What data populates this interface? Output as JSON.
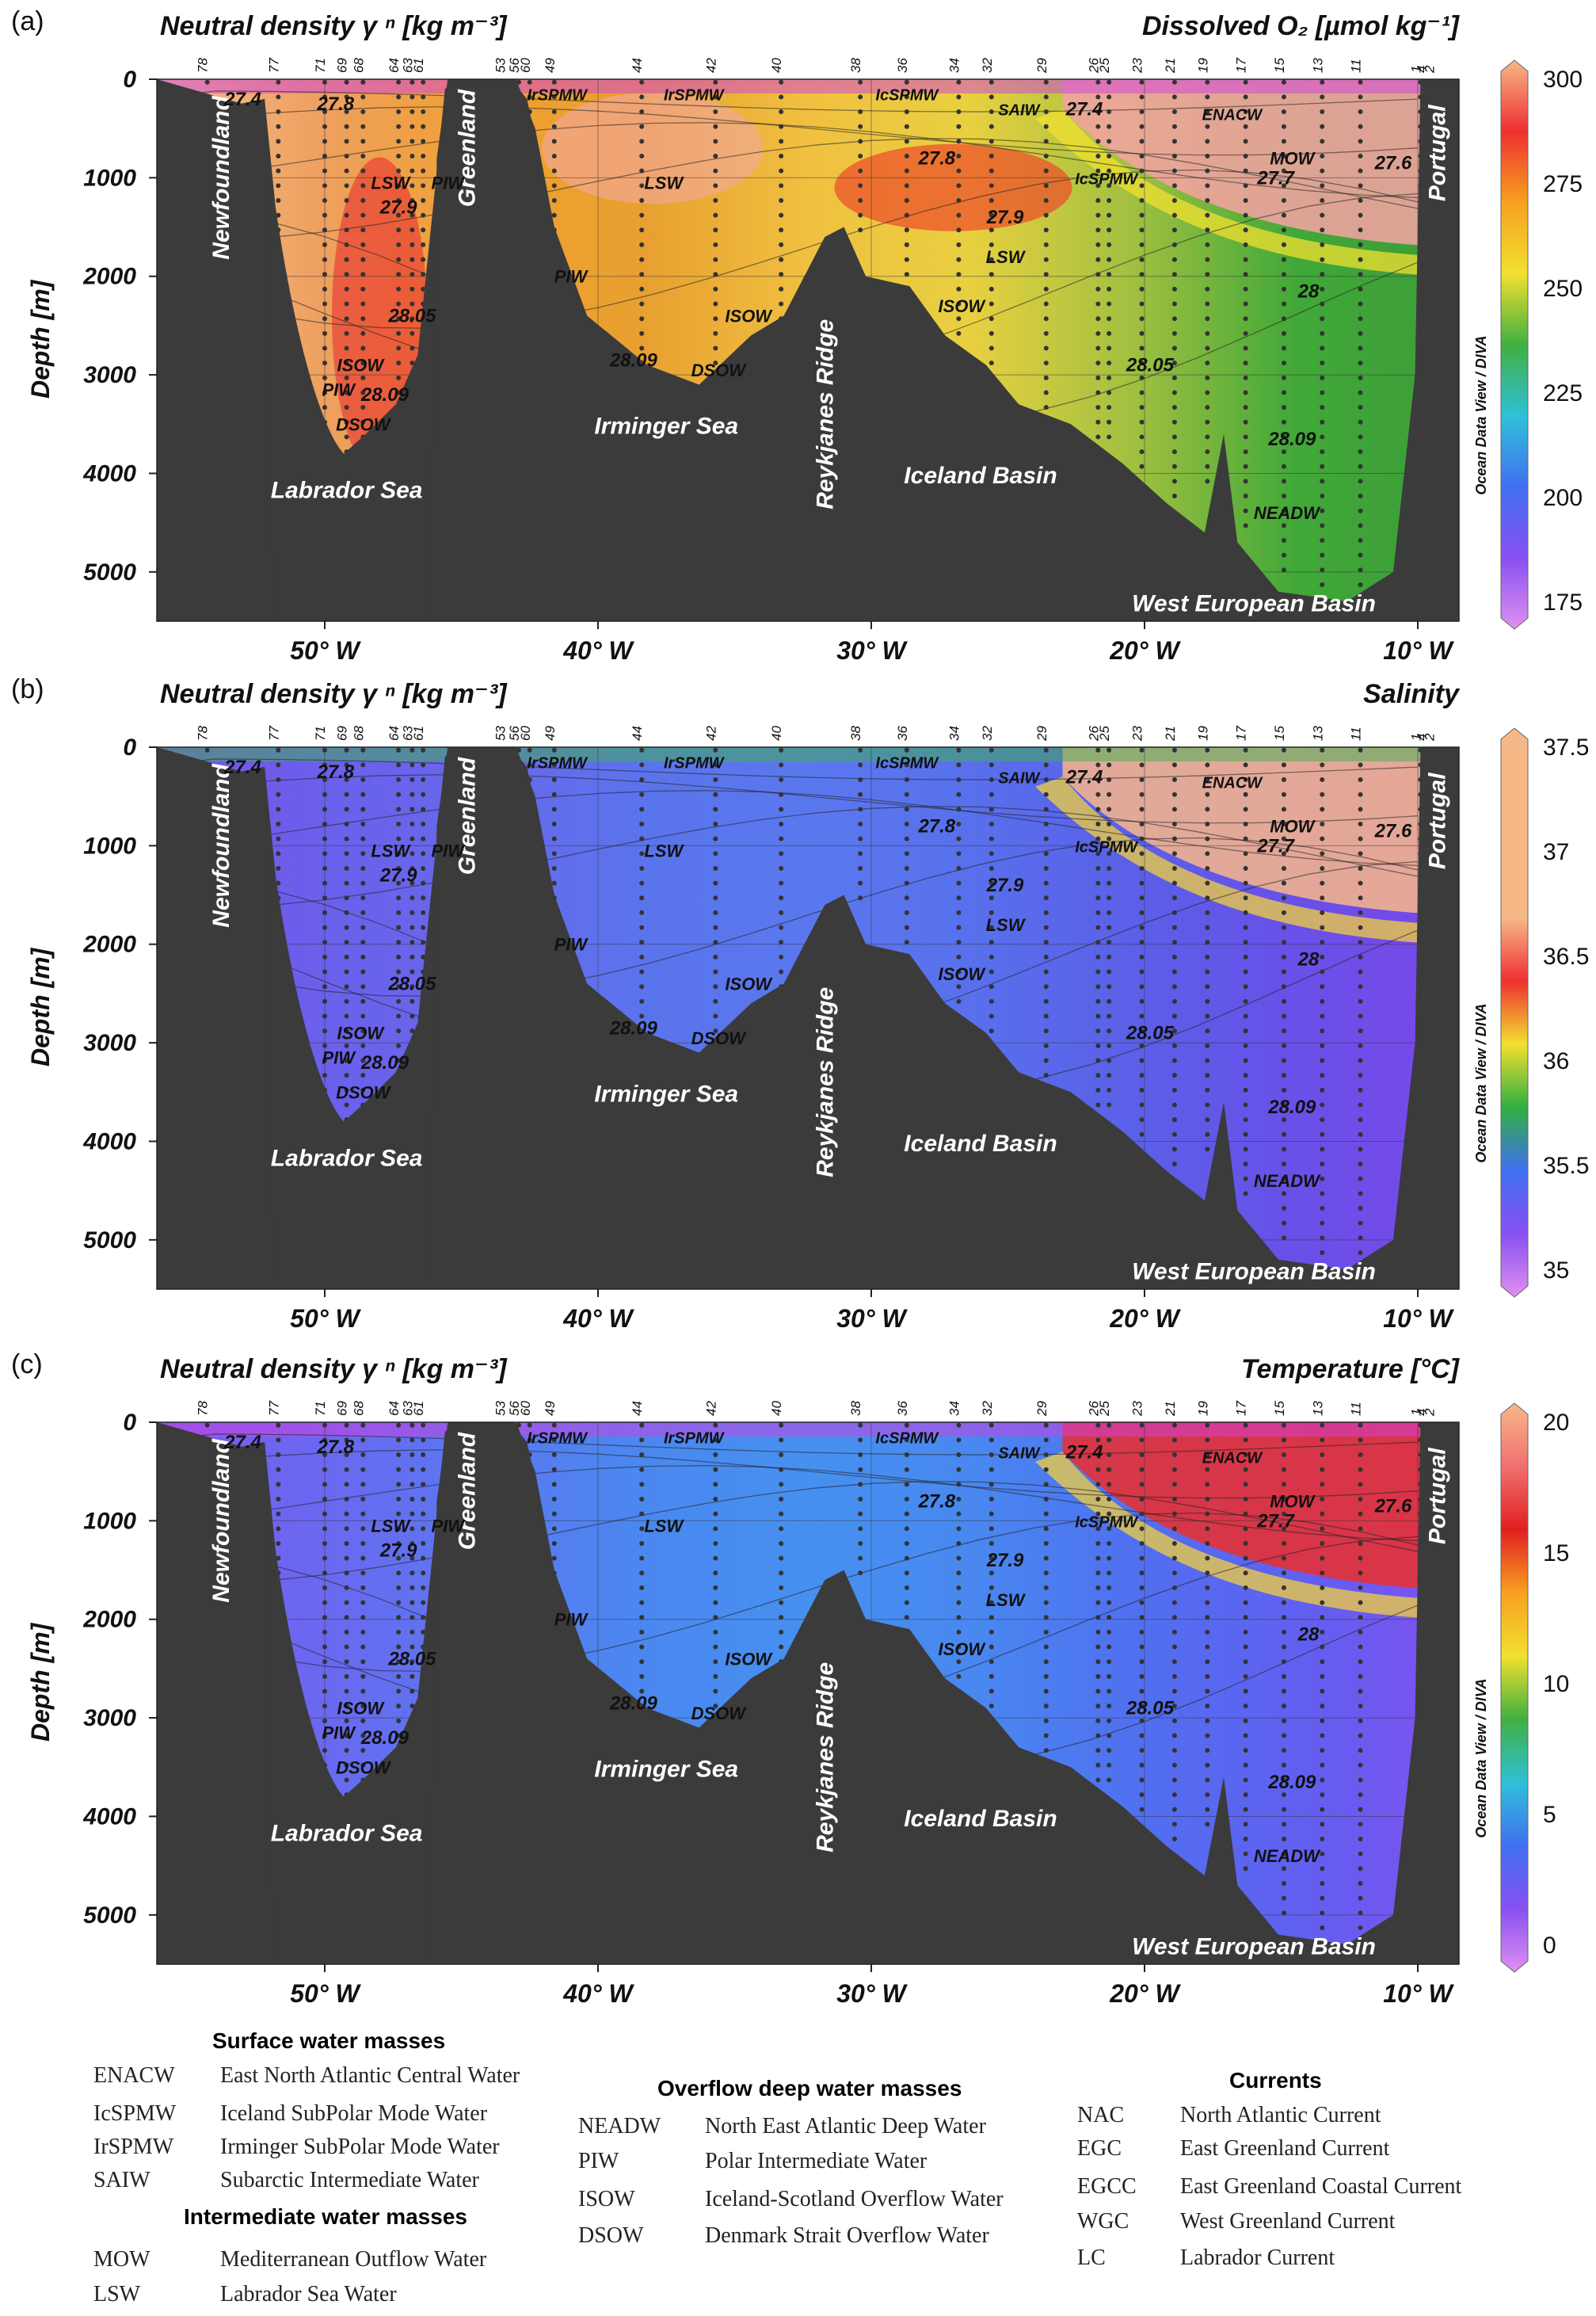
{
  "panels": [
    {
      "letter": "(a)",
      "title_left": "Neutral density γ ⁿ [kg m⁻³]",
      "title_right": "Dissolved O₂ [µmol kg⁻¹]",
      "colorbar_ticks": [
        "300",
        "275",
        "250",
        "225",
        "200",
        "175"
      ],
      "colorbar_colors": [
        "#f7b888",
        "#ee3030",
        "#f7a020",
        "#f2e030",
        "#40b040",
        "#30c0d8",
        "#4070f0",
        "#8850f0",
        "#e090f0"
      ],
      "contour_labels": [
        "27.4",
        "27.8",
        "27.9",
        "28.05",
        "28.09",
        "28.09",
        "27.8",
        "27.9",
        "28",
        "28.05",
        "28.09",
        "27.6",
        "27.7",
        "27.4"
      ],
      "water_labels": [
        "IrSPMW",
        "IrSPMW",
        "IcSPMW",
        "SAIW",
        "ENACW",
        "LSW",
        "PIW",
        "LSW",
        "IcSPMW",
        "MOW",
        "LSW",
        "PIW",
        "ISOW",
        "ISOW",
        "DSOW",
        "ISOW",
        "PIW",
        "DSOW",
        "NEADW"
      ]
    },
    {
      "letter": "(b)",
      "title_left": "Neutral density γ ⁿ [kg m⁻³]",
      "title_right": "Salinity",
      "colorbar_ticks": [
        "37.5",
        "37",
        "36.5",
        "36",
        "35.5",
        "35"
      ],
      "colorbar_colors": [
        "#f7b888",
        "#f7b888",
        "#f7b888",
        "#f7b888",
        "#ee3030",
        "#f2e030",
        "#30b040",
        "#4070f0",
        "#8850f0",
        "#e090f0"
      ],
      "contour_labels": [
        "27.4",
        "27.8",
        "27.9",
        "28.05",
        "28.09",
        "28.09",
        "27.8",
        "27.9",
        "28",
        "28.05",
        "28.09",
        "27.6",
        "27.7",
        "27.4"
      ],
      "water_labels": [
        "IrSPMW",
        "IrSPMW",
        "IcSPMW",
        "SAIW",
        "ENACW",
        "LSW",
        "PIW",
        "LSW",
        "IcSPMW",
        "MOW",
        "LSW",
        "PIW",
        "ISOW",
        "ISOW",
        "DSOW",
        "ISOW",
        "PIW",
        "DSOW",
        "NEADW"
      ]
    },
    {
      "letter": "(c)",
      "title_left": "Neutral density γ ⁿ [kg m⁻³]",
      "title_right": "Temperature [°C]",
      "colorbar_ticks": [
        "20",
        "15",
        "10",
        "5",
        "0"
      ],
      "colorbar_colors": [
        "#f7b888",
        "#f07070",
        "#e02020",
        "#f7a020",
        "#f2e030",
        "#40b040",
        "#30c0d8",
        "#4070f0",
        "#8850f0",
        "#e090f0"
      ],
      "contour_labels": [
        "27.4",
        "27.8",
        "27.9",
        "28.05",
        "28.09",
        "28.09",
        "27.8",
        "27.9",
        "28",
        "28.05",
        "28.09",
        "27.6",
        "27.7",
        "27.4"
      ],
      "water_labels": [
        "IrSPMW",
        "IrSPMW",
        "IcSPMW",
        "SAIW",
        "ENACW",
        "LSW",
        "PIW",
        "LSW",
        "IcSPMW",
        "MOW",
        "LSW",
        "PIW",
        "ISOW",
        "ISOW",
        "DSOW",
        "ISOW",
        "PIW",
        "DSOW",
        "NEADW"
      ]
    }
  ],
  "stations": [
    "78",
    "77",
    "71",
    "69",
    "68",
    "64",
    "63",
    "61",
    "53",
    "56",
    "60",
    "49",
    "44",
    "42",
    "40",
    "38",
    "36",
    "34",
    "32",
    "29",
    "26",
    "25",
    "23",
    "21",
    "19",
    "17",
    "15",
    "13",
    "11",
    "1",
    "4",
    "2"
  ],
  "depth_ticks": [
    "0",
    "1000",
    "2000",
    "3000",
    "4000",
    "5000"
  ],
  "lon_ticks": [
    "50° W",
    "40° W",
    "30° W",
    "20° W",
    "10° W"
  ],
  "ylabel": "Depth [m]",
  "geo_labels": [
    "Newfoundland",
    "Greenland",
    "Portugal",
    "Reykjanes Ridge",
    "Labrador Sea",
    "Irminger Sea",
    "Iceland Basin",
    "West European Basin"
  ],
  "credit": "Ocean Data View / DIVA",
  "legend": {
    "surface_title": "Surface water masses",
    "surface": [
      {
        "abbr": "ENACW",
        "name": "East North Atlantic Central Water"
      },
      {
        "abbr": "IcSPMW",
        "name": "Iceland SubPolar Mode Water"
      },
      {
        "abbr": "IrSPMW",
        "name": "Irminger SubPolar Mode Water"
      },
      {
        "abbr": "SAIW",
        "name": "Subarctic Intermediate Water"
      }
    ],
    "intermediate_title": "Intermediate water masses",
    "intermediate": [
      {
        "abbr": "MOW",
        "name": "Mediterranean Outflow Water"
      },
      {
        "abbr": "LSW",
        "name": "Labrador Sea Water"
      }
    ],
    "deep_title": "Overflow deep water masses",
    "deep": [
      {
        "abbr": "NEADW",
        "name": "North East Atlantic Deep Water"
      },
      {
        "abbr": "PIW",
        "name": "Polar Intermediate Water"
      },
      {
        "abbr": "ISOW",
        "name": "Iceland-Scotland Overflow Water"
      },
      {
        "abbr": "DSOW",
        "name": "Denmark Strait Overflow Water"
      }
    ],
    "currents_title": "Currents",
    "currents": [
      {
        "abbr": "NAC",
        "name": "North Atlantic Current"
      },
      {
        "abbr": "EGC",
        "name": "East Greenland Current"
      },
      {
        "abbr": "EGCC",
        "name": "East Greenland Coastal Current"
      },
      {
        "abbr": "WGC",
        "name": "West Greenland Current"
      },
      {
        "abbr": "LC",
        "name": "Labrador Current"
      }
    ]
  }
}
